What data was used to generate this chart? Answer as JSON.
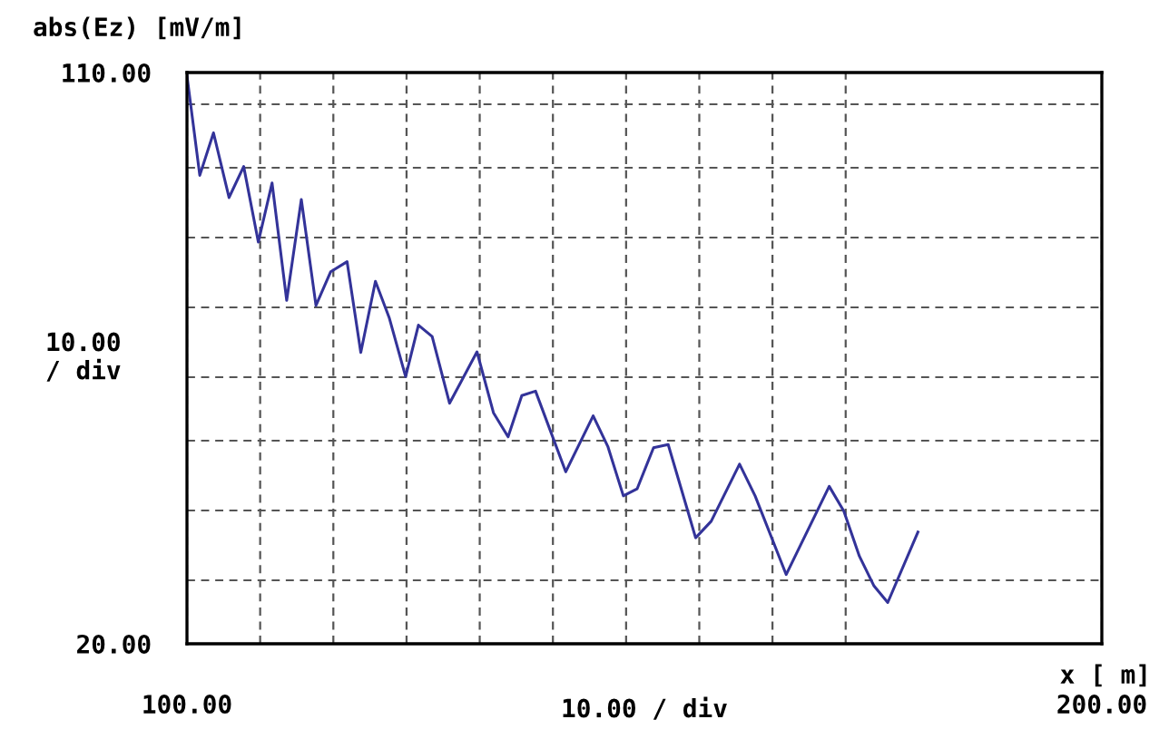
{
  "chart_data": {
    "type": "line",
    "title": "abs(Ez) [mV/m]",
    "ylabel": "10.00\n/ div",
    "xlabel": "10.00 / div",
    "annotations": [
      "x [ m]"
    ],
    "x": [
      100,
      101.4,
      102.9,
      104.6,
      106.2,
      107.8,
      109.3,
      110.9,
      112.5,
      114.1,
      115.7,
      117.5,
      119.0,
      120.6,
      122.1,
      123.9,
      125.3,
      126.8,
      128.7,
      131.7,
      133.5,
      135.1,
      136.6,
      138.1,
      141.4,
      144.4,
      146.0,
      147.7,
      149.2,
      151.0,
      152.6,
      155.6,
      157.3,
      160.4,
      162.1,
      165.5,
      170.2,
      171.8,
      173.5,
      175.1,
      176.6,
      179.9
    ],
    "series": [
      {
        "color": "#333399",
        "values": [
          109.5,
          93.8,
          100.5,
          90.3,
          95.2,
          83.3,
          92.6,
          74.1,
          90.0,
          73.3,
          78.6,
          80.2,
          65.9,
          77.1,
          71.4,
          62.1,
          70.2,
          68.4,
          57.9,
          66.0,
          56.4,
          52.6,
          59.1,
          59.8,
          47.1,
          55.9,
          51.1,
          43.3,
          44.4,
          50.9,
          51.4,
          36.7,
          39.3,
          48.3,
          43.3,
          30.9,
          44.8,
          40.9,
          33.8,
          29.1,
          26.5,
          37.6
        ]
      }
    ],
    "xlim": [
      100,
      200
    ],
    "ylim": [
      20,
      110
    ],
    "xticks": [
      {
        "value": 100,
        "label": "100.00"
      },
      {
        "value": 108,
        "label": null
      },
      {
        "value": 116,
        "label": null
      },
      {
        "value": 124,
        "label": null
      },
      {
        "value": 132,
        "label": null
      },
      {
        "value": 140,
        "label": null
      },
      {
        "value": 148,
        "label": null
      },
      {
        "value": 156,
        "label": null
      },
      {
        "value": 164,
        "label": null
      },
      {
        "value": 172,
        "label": null
      },
      {
        "value": 200,
        "label": "200.00"
      }
    ],
    "yticks": [
      {
        "value": 20,
        "label": "20.00"
      },
      {
        "value": 30,
        "label": null
      },
      {
        "value": 41,
        "label": null
      },
      {
        "value": 52,
        "label": null
      },
      {
        "value": 62,
        "label": null
      },
      {
        "value": 73,
        "label": null
      },
      {
        "value": 84,
        "label": null
      },
      {
        "value": 95,
        "label": null
      },
      {
        "value": 105,
        "label": null
      },
      {
        "value": 110,
        "label": "110.00"
      }
    ],
    "grid": true,
    "marker": "none",
    "line_style": "solid"
  }
}
